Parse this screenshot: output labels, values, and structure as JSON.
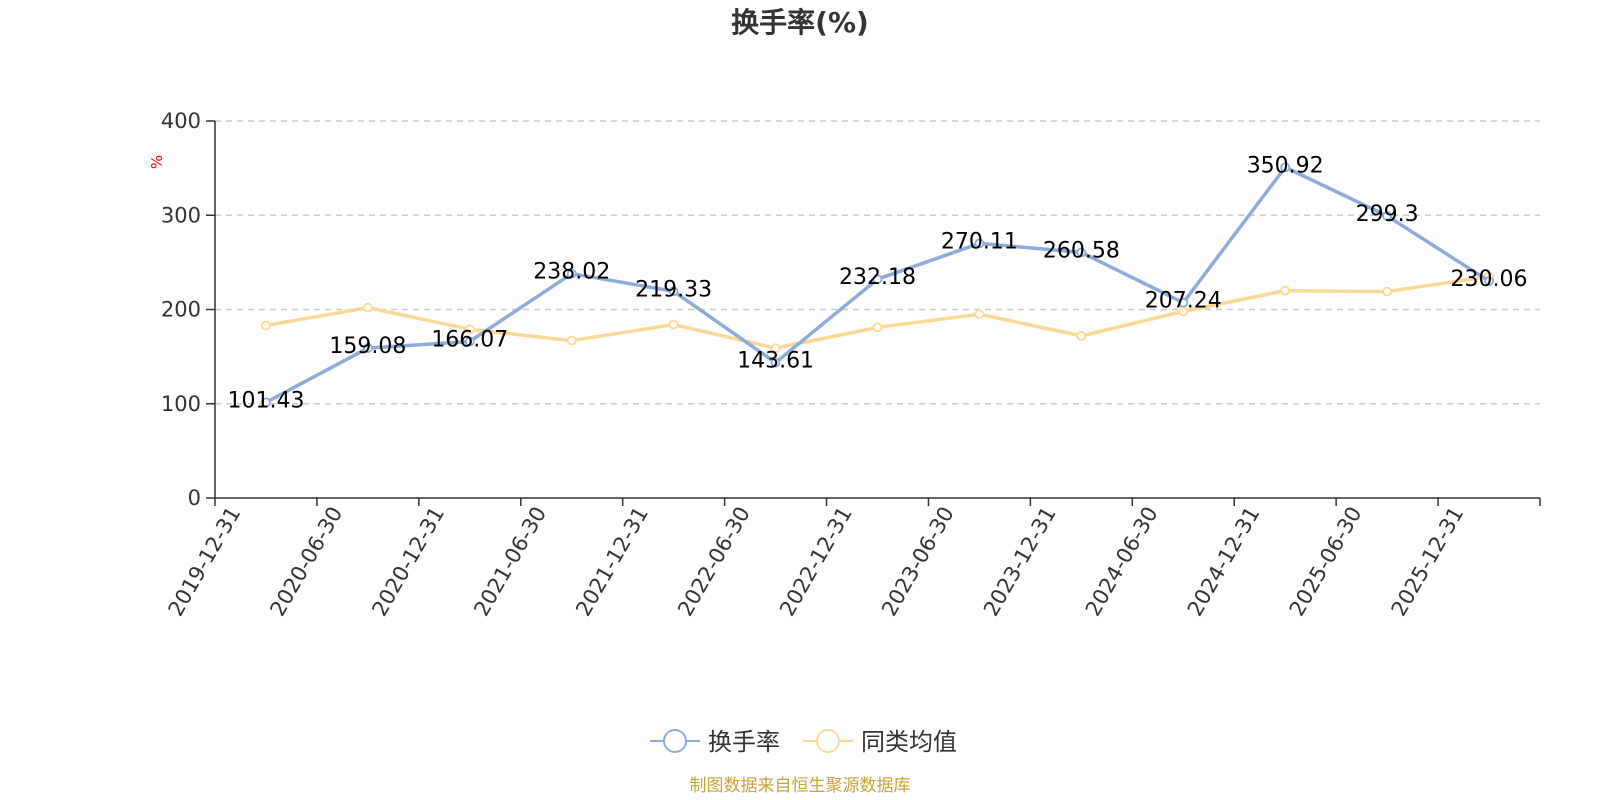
{
  "chart_data": {
    "type": "line",
    "title": "换手率(%)",
    "ylabel": "%",
    "ylim": [
      0,
      400
    ],
    "yticks": [
      0,
      100,
      200,
      300,
      400
    ],
    "grid": "horizontal-dashed",
    "categories": [
      "2019-12-31",
      "2020-06-30",
      "2020-12-31",
      "2021-06-30",
      "2021-12-31",
      "2022-06-30",
      "2022-12-31",
      "2023-06-30",
      "2023-12-31",
      "2024-06-30",
      "2024-12-31",
      "2025-06-30",
      "2025-12-31"
    ],
    "series": [
      {
        "name": "换手率",
        "color": "#8eacd9",
        "values": [
          101.43,
          159.08,
          166.07,
          238.02,
          219.33,
          143.61,
          232.18,
          270.11,
          260.58,
          207.24,
          350.92,
          299.3,
          230.06
        ],
        "labels": [
          "101.43",
          "159.08",
          "166.07",
          "238.02",
          "219.33",
          "143.61",
          "232.18",
          "270.11",
          "260.58",
          "207.24",
          "350.92",
          "299.3",
          "230.06"
        ]
      },
      {
        "name": "同类均值",
        "color": "#fad995",
        "values": [
          183,
          202,
          179,
          167,
          184,
          159,
          181,
          195,
          172,
          198,
          220,
          219,
          235
        ]
      }
    ],
    "legend_position": "bottom-center",
    "source": "制图数据来自恒生聚源数据库",
    "source_color": "#c8a43a",
    "unit_color": "#ff0000"
  }
}
